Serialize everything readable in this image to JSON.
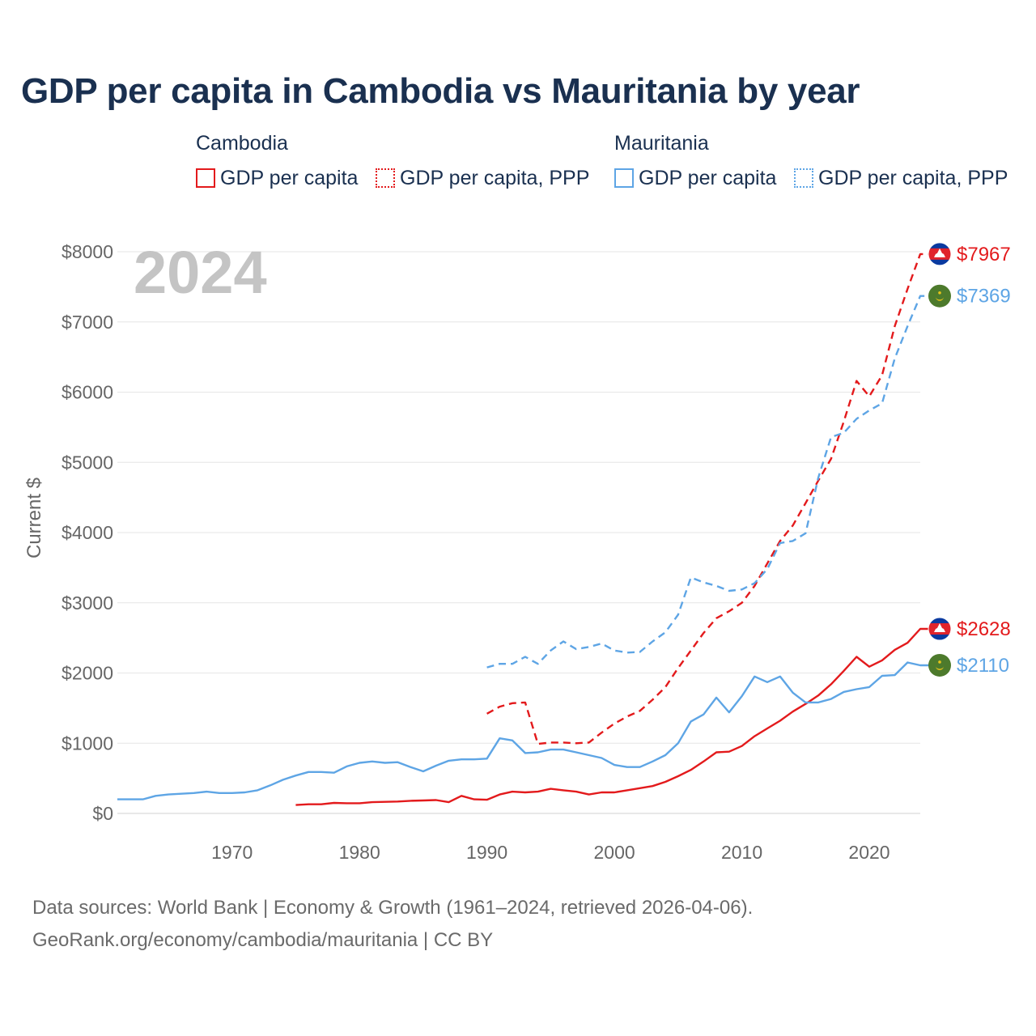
{
  "colors": {
    "cambodia": "#e31a1c",
    "mauritania": "#5ea5e5",
    "title": "#1a3050",
    "axis_text": "#666666",
    "grid": "#e6e6e6",
    "year_watermark": "#c4c4c4",
    "footer": "#6a6a6a"
  },
  "title": "GDP per capita in Cambodia vs Mauritania by year",
  "legend": {
    "groups": [
      {
        "name": "Cambodia",
        "items": [
          "GDP per capita",
          "GDP per capita, PPP"
        ]
      },
      {
        "name": "Mauritania",
        "items": [
          "GDP per capita",
          "GDP per capita, PPP"
        ]
      }
    ]
  },
  "footer": {
    "line1": "Data sources: World Bank | Economy & Growth (1961–2024, retrieved 2026-04-06).",
    "line2": "GeoRank.org/economy/cambodia/mauritania | CC BY"
  },
  "chart_data": {
    "type": "line",
    "title": "GDP per capita in Cambodia vs Mauritania by year",
    "year_label": "2024",
    "xlabel": "",
    "ylabel": "Current $",
    "xlim": [
      1961,
      2024
    ],
    "ylim": [
      0,
      8000
    ],
    "x_ticks": [
      1970,
      1980,
      1990,
      2000,
      2010,
      2020
    ],
    "y_ticks": [
      0,
      1000,
      2000,
      3000,
      4000,
      5000,
      6000,
      7000,
      8000
    ],
    "y_tick_labels": [
      "$0",
      "$1000",
      "$2000",
      "$3000",
      "$4000",
      "$5000",
      "$6000",
      "$7000",
      "$8000"
    ],
    "grid": true,
    "series": [
      {
        "name": "Cambodia GDP per capita",
        "country": "Cambodia",
        "style": "solid",
        "color": "#e31a1c",
        "x": [
          1975,
          1976,
          1977,
          1978,
          1979,
          1980,
          1981,
          1982,
          1983,
          1984,
          1985,
          1986,
          1987,
          1988,
          1989,
          1990,
          1991,
          1992,
          1993,
          1994,
          1995,
          1996,
          1997,
          1998,
          1999,
          2000,
          2001,
          2002,
          2003,
          2004,
          2005,
          2006,
          2007,
          2008,
          2009,
          2010,
          2011,
          2012,
          2013,
          2014,
          2015,
          2016,
          2017,
          2018,
          2019,
          2020,
          2021,
          2022,
          2023,
          2024
        ],
        "y": [
          120,
          130,
          130,
          150,
          145,
          145,
          160,
          165,
          170,
          180,
          185,
          190,
          160,
          250,
          200,
          195,
          270,
          310,
          300,
          310,
          350,
          330,
          310,
          270,
          300,
          300,
          330,
          360,
          390,
          450,
          530,
          620,
          740,
          870,
          880,
          960,
          1100,
          1210,
          1320,
          1450,
          1560,
          1680,
          1840,
          2030,
          2230,
          2090,
          2180,
          2330,
          2430,
          2628
        ],
        "end_label": "$2628"
      },
      {
        "name": "Cambodia GDP per capita, PPP",
        "country": "Cambodia",
        "style": "dashed",
        "color": "#e31a1c",
        "x": [
          1990,
          1991,
          1992,
          1993,
          1994,
          1995,
          1996,
          1997,
          1998,
          1999,
          2000,
          2001,
          2002,
          2003,
          2004,
          2005,
          2006,
          2007,
          2008,
          2009,
          2010,
          2011,
          2012,
          2013,
          2014,
          2015,
          2016,
          2017,
          2018,
          2019,
          2020,
          2021,
          2022,
          2023,
          2024
        ],
        "y": [
          1420,
          1520,
          1570,
          1580,
          990,
          1010,
          1010,
          1000,
          1010,
          1150,
          1280,
          1380,
          1460,
          1620,
          1800,
          2070,
          2320,
          2570,
          2780,
          2880,
          3000,
          3240,
          3560,
          3880,
          4100,
          4420,
          4740,
          5050,
          5580,
          6160,
          5940,
          6240,
          6940,
          7470,
          7967
        ],
        "end_label": "$7967"
      },
      {
        "name": "Mauritania GDP per capita",
        "country": "Mauritania",
        "style": "solid",
        "color": "#5ea5e5",
        "x": [
          1961,
          1962,
          1963,
          1964,
          1965,
          1966,
          1967,
          1968,
          1969,
          1970,
          1971,
          1972,
          1973,
          1974,
          1975,
          1976,
          1977,
          1978,
          1979,
          1980,
          1981,
          1982,
          1983,
          1984,
          1985,
          1986,
          1987,
          1988,
          1989,
          1990,
          1991,
          1992,
          1993,
          1994,
          1995,
          1996,
          1997,
          1998,
          1999,
          2000,
          2001,
          2002,
          2003,
          2004,
          2005,
          2006,
          2007,
          2008,
          2009,
          2010,
          2011,
          2012,
          2013,
          2014,
          2015,
          2016,
          2017,
          2018,
          2019,
          2020,
          2021,
          2022,
          2023,
          2024
        ],
        "y": [
          200,
          200,
          200,
          250,
          270,
          280,
          290,
          310,
          290,
          290,
          300,
          330,
          400,
          480,
          540,
          590,
          590,
          580,
          670,
          720,
          740,
          720,
          730,
          660,
          600,
          680,
          750,
          770,
          770,
          780,
          1070,
          1040,
          860,
          870,
          910,
          910,
          870,
          830,
          790,
          690,
          660,
          660,
          740,
          830,
          1000,
          1310,
          1410,
          1650,
          1440,
          1670,
          1950,
          1870,
          1950,
          1720,
          1580,
          1580,
          1630,
          1730,
          1770,
          1800,
          1960,
          1970,
          2150,
          2110
        ],
        "end_label": "$2110"
      },
      {
        "name": "Mauritania GDP per capita, PPP",
        "country": "Mauritania",
        "style": "dashed",
        "color": "#5ea5e5",
        "x": [
          1990,
          1991,
          1992,
          1993,
          1994,
          1995,
          1996,
          1997,
          1998,
          1999,
          2000,
          2001,
          2002,
          2003,
          2004,
          2005,
          2006,
          2007,
          2008,
          2009,
          2010,
          2011,
          2012,
          2013,
          2014,
          2015,
          2016,
          2017,
          2018,
          2019,
          2020,
          2021,
          2022,
          2023,
          2024
        ],
        "y": [
          2080,
          2130,
          2130,
          2230,
          2130,
          2320,
          2450,
          2340,
          2370,
          2420,
          2320,
          2290,
          2300,
          2450,
          2580,
          2830,
          3360,
          3290,
          3240,
          3170,
          3190,
          3280,
          3480,
          3850,
          3880,
          3990,
          4780,
          5360,
          5420,
          5620,
          5740,
          5840,
          6480,
          6940,
          7369
        ],
        "end_label": "$7369"
      }
    ]
  }
}
